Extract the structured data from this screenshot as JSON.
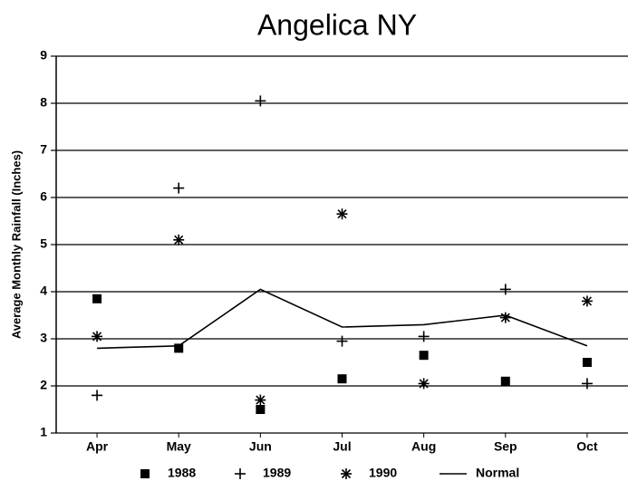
{
  "chart_data": {
    "type": "line",
    "title": "Angelica NY",
    "y_label": "Average Monthly Rainfall (Inches)",
    "categories": [
      "Apr",
      "May",
      "Jun",
      "Jul",
      "Aug",
      "Sep",
      "Oct"
    ],
    "series": [
      {
        "name": "1988",
        "color": "#000000",
        "marker": "square",
        "values": [
          3.85,
          2.8,
          1.5,
          2.15,
          2.65,
          2.1,
          2.5
        ]
      },
      {
        "name": "1989",
        "color": "#000000",
        "marker": "plus",
        "values": [
          1.8,
          6.2,
          8.05,
          2.95,
          3.05,
          4.05,
          2.05
        ]
      },
      {
        "name": "1990",
        "color": "#000000",
        "marker": "asterisk",
        "values": [
          3.05,
          5.1,
          1.7,
          5.65,
          2.05,
          3.45,
          3.8
        ]
      },
      {
        "name": "Normal",
        "color": "#000000",
        "marker": "line",
        "values": [
          2.8,
          2.85,
          4.05,
          3.25,
          3.3,
          3.5,
          2.85
        ]
      }
    ],
    "ylim": [
      1,
      9
    ],
    "yticks": [
      1,
      2,
      3,
      4,
      5,
      6,
      7,
      8,
      9
    ],
    "grid": true,
    "legend": "bottom"
  }
}
